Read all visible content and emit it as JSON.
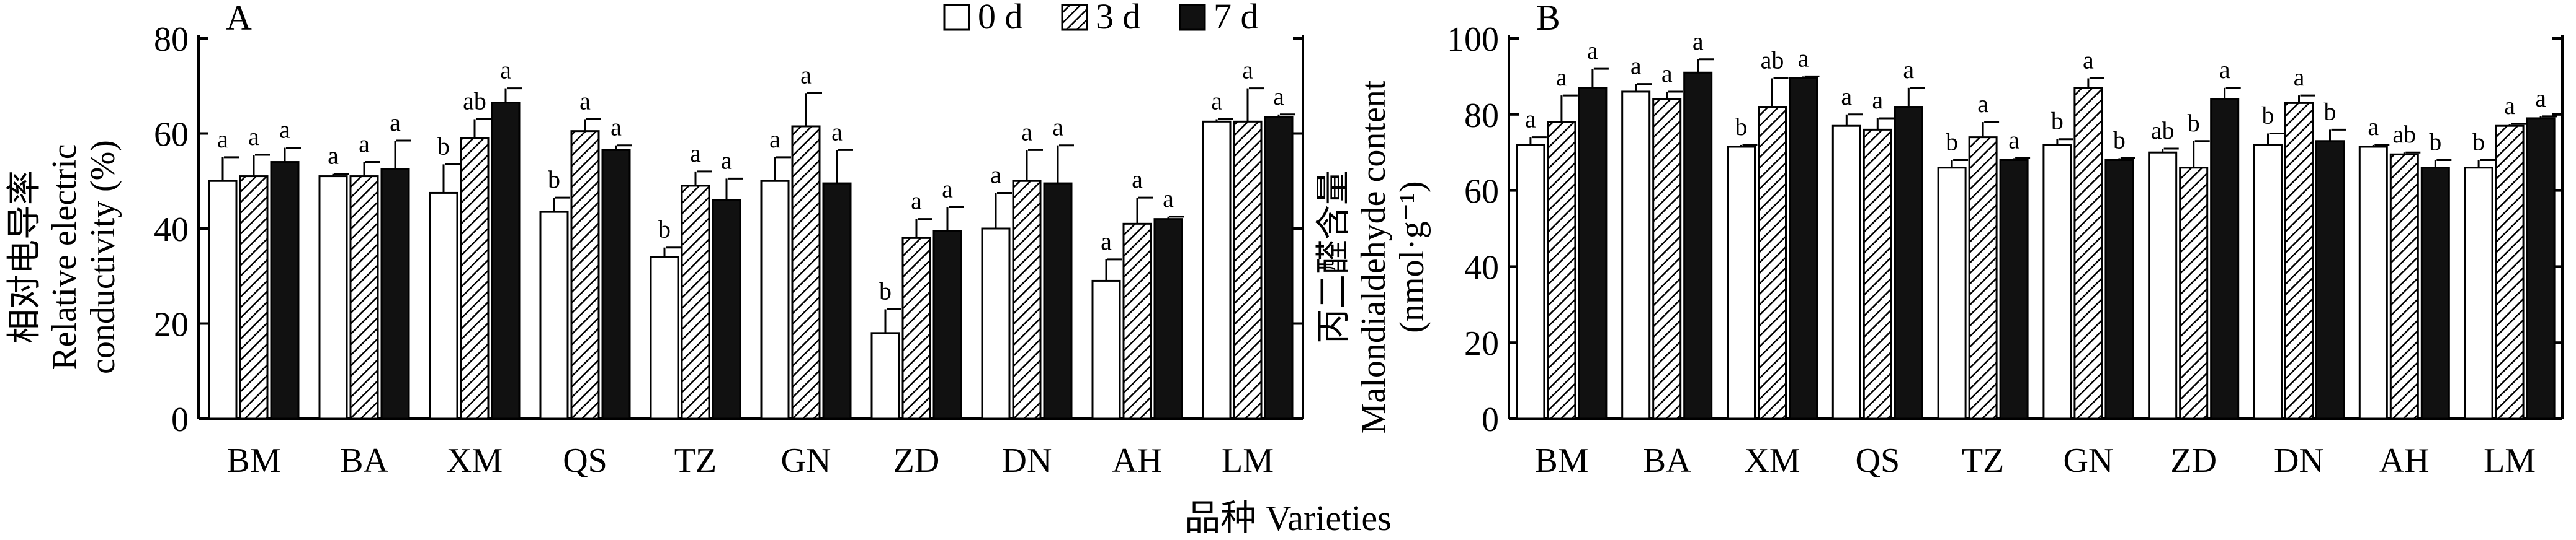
{
  "chart_data": [
    {
      "type": "bar",
      "panel_label": "A",
      "ylabel_cn": "相对电导率",
      "ylabel_en_1": "Relative electric",
      "ylabel_en_2": "conductivity (%)",
      "ylim": [
        0,
        80
      ],
      "yticks": [
        "0",
        "20",
        "40",
        "60",
        "80"
      ],
      "categories": [
        "BM",
        "BA",
        "XM",
        "QS",
        "TZ",
        "GN",
        "ZD",
        "DN",
        "AH",
        "LM"
      ],
      "series": [
        {
          "name": "0 d",
          "values": [
            50,
            51,
            47.5,
            43.5,
            34,
            50,
            18,
            40,
            29,
            62.5
          ],
          "errors": [
            5,
            0.5,
            6,
            3,
            2,
            5,
            5,
            7.5,
            4.5,
            0.5
          ],
          "letters": [
            "a",
            "a",
            "b",
            "b",
            "b",
            "a",
            "b",
            "a",
            "a",
            "a"
          ]
        },
        {
          "name": "3 d",
          "values": [
            51,
            51,
            59,
            60.5,
            49,
            61.5,
            38,
            50,
            41,
            62.5
          ],
          "errors": [
            4.5,
            3,
            4,
            2.5,
            3,
            7,
            4,
            6.5,
            5.5,
            7
          ],
          "letters": [
            "a",
            "a",
            "ab",
            "a",
            "a",
            "a",
            "a",
            "a",
            "a",
            "a"
          ]
        },
        {
          "name": "7 d",
          "values": [
            54,
            52.5,
            66.5,
            56.5,
            46,
            49.5,
            39.5,
            49.5,
            42,
            63.5
          ],
          "errors": [
            3,
            6,
            3,
            1,
            4.5,
            7,
            5,
            8,
            0.5,
            0.5
          ],
          "letters": [
            "a",
            "a",
            "a",
            "a",
            "a",
            "a",
            "a",
            "a",
            "a",
            "a"
          ]
        }
      ]
    },
    {
      "type": "bar",
      "panel_label": "B",
      "ylabel_cn": "丙二醛含量",
      "ylabel_en_1": "Malondialdehyde content",
      "ylabel_en_2": "(nmol·g⁻¹)",
      "ylim": [
        0,
        100
      ],
      "yticks": [
        "0",
        "20",
        "40",
        "60",
        "80",
        "100"
      ],
      "categories": [
        "BM",
        "BA",
        "XM",
        "QS",
        "TZ",
        "GN",
        "ZD",
        "DN",
        "AH",
        "LM"
      ],
      "series": [
        {
          "name": "0 d",
          "values": [
            72,
            86,
            71.5,
            77,
            66,
            72,
            70,
            72,
            71.5,
            66
          ],
          "errors": [
            2,
            2,
            0.5,
            3,
            2,
            1.5,
            1,
            3,
            0.5,
            2
          ],
          "letters": [
            "a",
            "a",
            "b",
            "a",
            "b",
            "b",
            "ab",
            "b",
            "a",
            "b"
          ]
        },
        {
          "name": "3 d",
          "values": [
            78,
            84,
            82,
            76,
            74,
            87,
            66,
            83,
            69.5,
            77
          ],
          "errors": [
            7,
            2,
            7.5,
            3,
            4,
            2.5,
            7,
            2,
            0.5,
            0.5
          ],
          "letters": [
            "a",
            "a",
            "ab",
            "a",
            "a",
            "a",
            "b",
            "a",
            "ab",
            "a"
          ]
        },
        {
          "name": "7 d",
          "values": [
            87,
            91,
            89.5,
            82,
            68,
            68,
            84,
            73,
            66,
            79
          ],
          "errors": [
            5,
            3.5,
            0.5,
            5,
            0.5,
            0.5,
            3,
            3,
            2,
            0.5
          ],
          "letters": [
            "a",
            "a",
            "a",
            "a",
            "a",
            "b",
            "a",
            "b",
            "b",
            "a"
          ]
        }
      ]
    }
  ],
  "legend": {
    "items": [
      "0 d",
      "3 d",
      "7 d"
    ],
    "placement": "top-right of panel A"
  },
  "xlabel": "品种 Varieties"
}
